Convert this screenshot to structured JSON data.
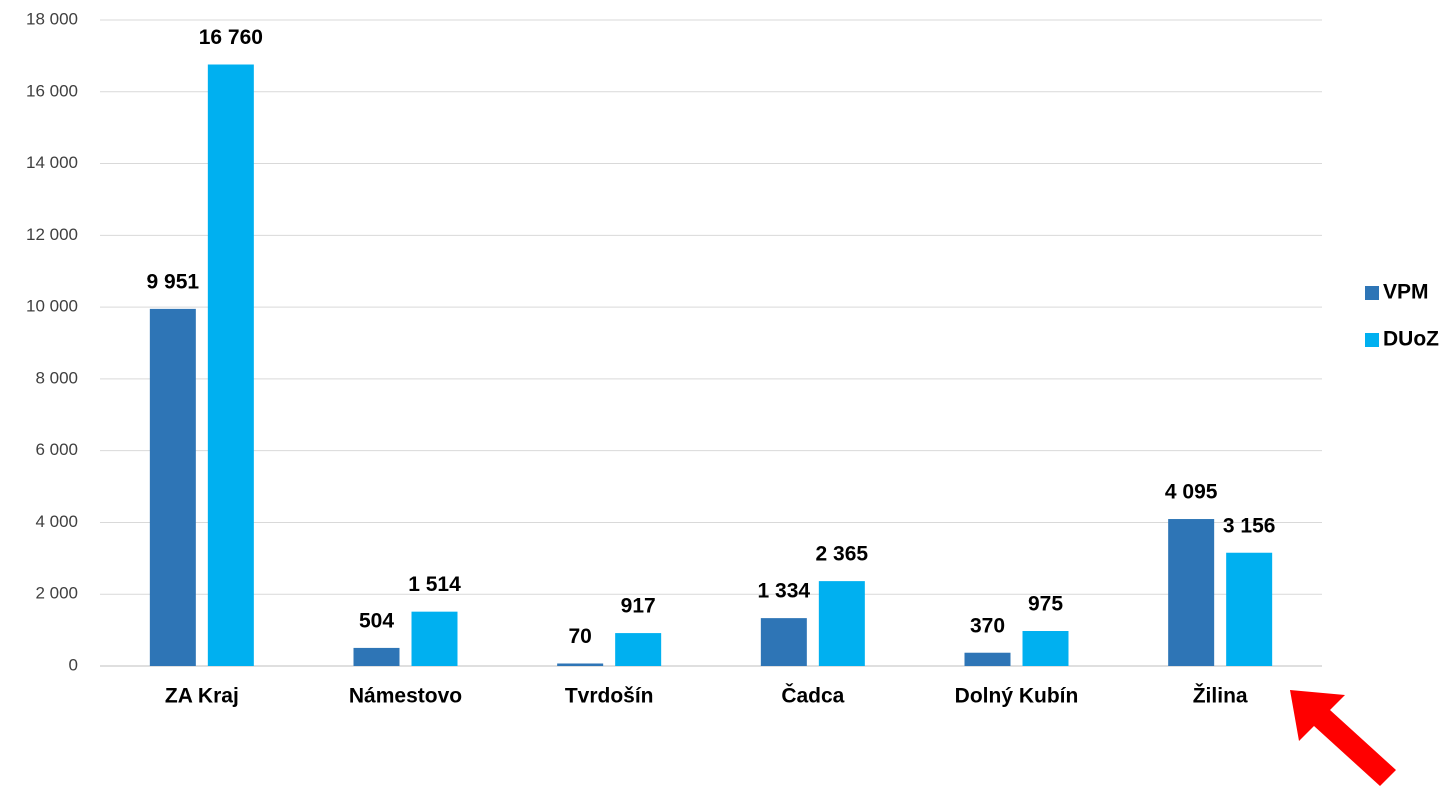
{
  "chart_data": {
    "type": "bar",
    "categories": [
      "ZA Kraj",
      "Námestovo",
      "Tvrdošín",
      "Čadca",
      "Dolný Kubín",
      "Žilina"
    ],
    "series": [
      {
        "name": "VPM",
        "color": "#2e75b6",
        "values": [
          9951,
          504,
          70,
          1334,
          370,
          4095
        ],
        "value_labels": [
          "9 951",
          "504",
          "70",
          "1 334",
          "370",
          "4 095"
        ]
      },
      {
        "name": "DUoZ",
        "color": "#00b0f0",
        "values": [
          16760,
          1514,
          917,
          2365,
          975,
          3156
        ],
        "value_labels": [
          "16 760",
          "1 514",
          "917",
          "2 365",
          "975",
          "3 156"
        ]
      }
    ],
    "ylim": [
      0,
      18000
    ],
    "yticks": [
      0,
      {
        "value": 2000,
        "label": "2 000"
      },
      {
        "value": 4000,
        "label": "4 000"
      },
      {
        "value": 6000,
        "label": "6 000"
      },
      {
        "value": 8000,
        "label": "8 000"
      },
      {
        "value": 10000,
        "label": "10 000"
      },
      {
        "value": 12000,
        "label": "12 000"
      },
      {
        "value": 14000,
        "label": "14 000"
      },
      {
        "value": 16000,
        "label": "16 000"
      },
      {
        "value": 18000,
        "label": "18 000"
      }
    ],
    "grid": true,
    "legend": "right"
  }
}
